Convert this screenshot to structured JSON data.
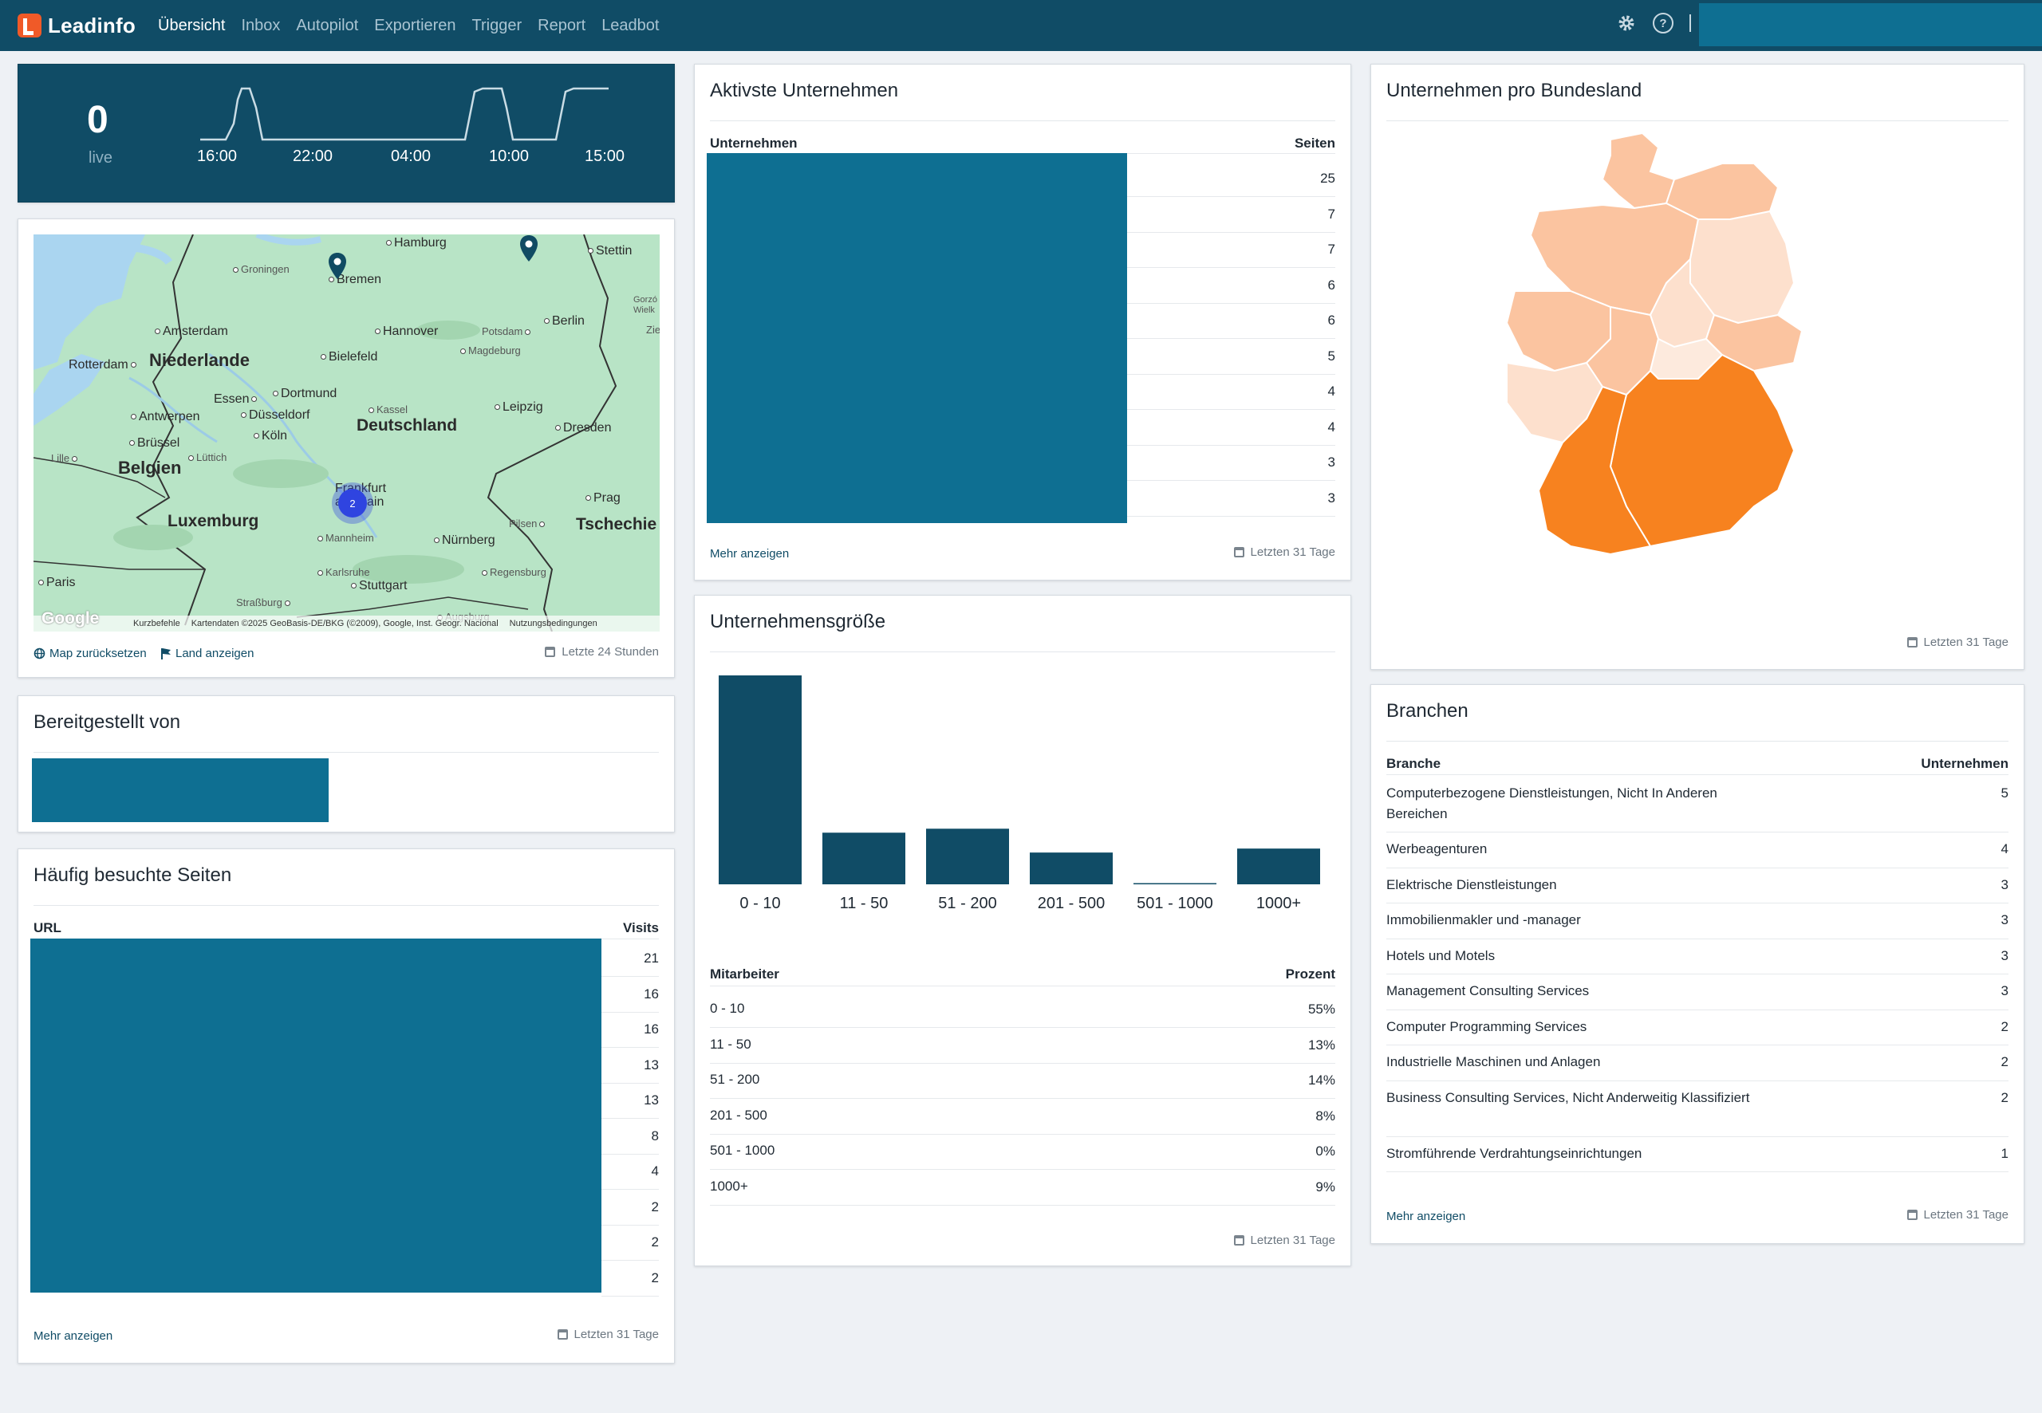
{
  "app": {
    "name": "Leadinfo"
  },
  "nav": [
    "Übersicht",
    "Inbox",
    "Autopilot",
    "Exportieren",
    "Trigger",
    "Report",
    "Leadbot"
  ],
  "top_icons": [
    "gear-icon",
    "help-icon"
  ],
  "live": {
    "count": "0",
    "label": "live",
    "ticks": [
      "16:00",
      "22:00",
      "04:00",
      "10:00",
      "15:00"
    ]
  },
  "map": {
    "labels": {
      "hamburg": "Hamburg",
      "stettin": "Stettin",
      "groningen": "Groningen",
      "bremen": "Bremen",
      "gorz": "Gorzó Wielk",
      "amsterdam": "Amsterdam",
      "hannover": "Hannover",
      "potsdam": "Potsdam",
      "berlin": "Berlin",
      "rotterdam": "Rotterdam",
      "niederlande": "Niederlande",
      "bielefeld": "Bielefeld",
      "magdeburg": "Magdeburg",
      "zielona": "Zielo",
      "essen": "Essen",
      "dortmund": "Dortmund",
      "antwerpen": "Antwerpen",
      "duesseldorf": "Düsseldorf",
      "kassel": "Kassel",
      "leipzig": "Leipzig",
      "deutschland": "Deutschland",
      "koeln": "Köln",
      "dresden": "Dresden",
      "bruessel": "Brüssel",
      "lille": "Lille",
      "luettich": "Lüttich",
      "belgien": "Belgien",
      "frankfurt": "Frankfurt am Main",
      "prag": "Prag",
      "luxemburg": "Luxemburg",
      "pilsen": "Pilsen",
      "tschechien": "Tschechie",
      "mannheim": "Mannheim",
      "nuernberg": "Nürnberg",
      "paris": "Paris",
      "karlsruhe": "Karlsruhe",
      "regensburg": "Regensburg",
      "stuttgart": "Stuttgart",
      "strassburg": "Straßburg",
      "augsburg": "Augsburg"
    },
    "cluster_count": "2",
    "google": "Google",
    "attribution": [
      "Kurzbefehle",
      "Kartendaten ©2025 GeoBasis-DE/BKG (©2009), Google, Inst. Geogr. Nacional",
      "Nutzungsbedingungen"
    ],
    "reset_link": "Map zurücksetzen",
    "country_link": "Land anzeigen",
    "period": "Letzte 24 Stunden"
  },
  "provider": {
    "title": "Bereitgestellt von"
  },
  "pages": {
    "title": "Häufig besuchte Seiten",
    "col_url": "URL",
    "col_visits": "Visits",
    "visits": [
      "21",
      "16",
      "16",
      "13",
      "13",
      "8",
      "4",
      "2",
      "2",
      "2"
    ],
    "more": "Mehr anzeigen",
    "period": "Letzten 31 Tage"
  },
  "companies": {
    "title": "Aktivste Unternehmen",
    "col_company": "Unternehmen",
    "col_pages": "Seiten",
    "pages": [
      "25",
      "7",
      "7",
      "6",
      "6",
      "5",
      "4",
      "4",
      "3",
      "3"
    ],
    "more": "Mehr anzeigen",
    "period": "Letzten 31 Tage"
  },
  "company_size": {
    "title": "Unternehmensgröße",
    "col_employees": "Mitarbeiter",
    "col_percent": "Prozent",
    "rows": [
      {
        "label": "0 - 10",
        "percent": "55%"
      },
      {
        "label": "11 - 50",
        "percent": "13%"
      },
      {
        "label": "51 - 200",
        "percent": "14%"
      },
      {
        "label": "201 - 500",
        "percent": "8%"
      },
      {
        "label": "501 - 1000",
        "percent": "0%"
      },
      {
        "label": "1000+",
        "percent": "9%"
      }
    ],
    "bar_color": "#104c66",
    "period": "Letzten 31 Tage"
  },
  "chart_data": {
    "type": "bar",
    "categories": [
      "0 - 10",
      "11 - 50",
      "51 - 200",
      "201 - 500",
      "501 - 1000",
      "1000+"
    ],
    "values": [
      55,
      13,
      14,
      8,
      0,
      9
    ],
    "title": "Unternehmensgröße",
    "xlabel": "",
    "ylabel": "",
    "grid": false
  },
  "bundesland": {
    "title": "Unternehmen pro Bundesland",
    "period": "Letzten 31 Tage",
    "colors": {
      "high": "#f7821f",
      "mid": "#fbc4a0",
      "low": "#fde0cd",
      "lowest": "#fdeadd"
    }
  },
  "branchen": {
    "title": "Branchen",
    "col_branch": "Branche",
    "col_companies": "Unternehmen",
    "rows": [
      {
        "name": "Computerbezogene Dienstleistungen, Nicht In Anderen Bereichen",
        "count": "5"
      },
      {
        "name": "Werbeagenturen",
        "count": "4"
      },
      {
        "name": "Elektrische Dienstleistungen",
        "count": "3"
      },
      {
        "name": "Immobilienmakler und -manager",
        "count": "3"
      },
      {
        "name": "Hotels und Motels",
        "count": "3"
      },
      {
        "name": "Management Consulting Services",
        "count": "3"
      },
      {
        "name": "Computer Programming Services",
        "count": "2"
      },
      {
        "name": "Industrielle Maschinen und Anlagen",
        "count": "2"
      },
      {
        "name": "Business Consulting Services, Nicht Anderweitig Klassifiziert",
        "count": "2"
      },
      {
        "name": "Stromführende Verdrahtungseinrichtungen",
        "count": "1"
      }
    ],
    "more": "Mehr anzeigen",
    "period": "Letzten 31 Tage"
  },
  "colors": {
    "brand": "#104c66",
    "accent": "#0e6f92",
    "logo": "#f05a28"
  }
}
